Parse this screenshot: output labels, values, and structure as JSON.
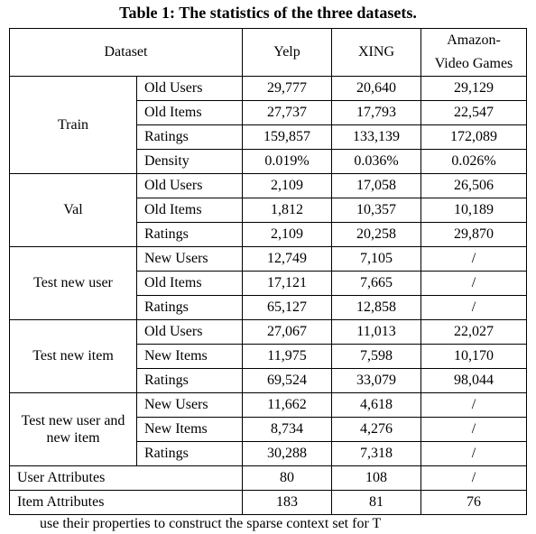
{
  "caption": "Table 1: The statistics of the three datasets.",
  "headers": {
    "dataset": "Dataset",
    "yelp": "Yelp",
    "xing": "XING",
    "avg_l1": "Amazon-",
    "avg_l2": "Video Games"
  },
  "sections": [
    {
      "name": "Train",
      "rows": [
        {
          "label": "Old Users",
          "yelp": "29,777",
          "xing": "20,640",
          "avg": "29,129"
        },
        {
          "label": "Old Items",
          "yelp": "27,737",
          "xing": "17,793",
          "avg": "22,547"
        },
        {
          "label": "Ratings",
          "yelp": "159,857",
          "xing": "133,139",
          "avg": "172,089"
        },
        {
          "label": "Density",
          "yelp": "0.019%",
          "xing": "0.036%",
          "avg": "0.026%"
        }
      ]
    },
    {
      "name": "Val",
      "rows": [
        {
          "label": "Old Users",
          "yelp": "2,109",
          "xing": "17,058",
          "avg": "26,506"
        },
        {
          "label": "Old Items",
          "yelp": "1,812",
          "xing": "10,357",
          "avg": "10,189"
        },
        {
          "label": "Ratings",
          "yelp": "2,109",
          "xing": "20,258",
          "avg": "29,870"
        }
      ]
    },
    {
      "name": "Test new user",
      "rows": [
        {
          "label": "New Users",
          "yelp": "12,749",
          "xing": "7,105",
          "avg": "/"
        },
        {
          "label": "Old Items",
          "yelp": "17,121",
          "xing": "7,665",
          "avg": "/"
        },
        {
          "label": "Ratings",
          "yelp": "65,127",
          "xing": "12,858",
          "avg": "/"
        }
      ]
    },
    {
      "name": "Test new item",
      "rows": [
        {
          "label": "Old Users",
          "yelp": "27,067",
          "xing": "11,013",
          "avg": "22,027"
        },
        {
          "label": "New Items",
          "yelp": "11,975",
          "xing": "7,598",
          "avg": "10,170"
        },
        {
          "label": "Ratings",
          "yelp": "69,524",
          "xing": "33,079",
          "avg": "98,044"
        }
      ]
    },
    {
      "name": "Test new user\nand new item",
      "rows": [
        {
          "label": "New Users",
          "yelp": "11,662",
          "xing": "4,618",
          "avg": "/"
        },
        {
          "label": "New Items",
          "yelp": "8,734",
          "xing": "4,276",
          "avg": "/"
        },
        {
          "label": "Ratings",
          "yelp": "30,288",
          "xing": "7,318",
          "avg": "/"
        }
      ]
    }
  ],
  "footer_rows": [
    {
      "label": "User Attributes",
      "yelp": "80",
      "xing": "108",
      "avg": "/"
    },
    {
      "label": "Item Attributes",
      "yelp": "183",
      "xing": "81",
      "avg": "76"
    }
  ],
  "bottom_fragment": "use their properties to construct the sparse context set for T"
}
